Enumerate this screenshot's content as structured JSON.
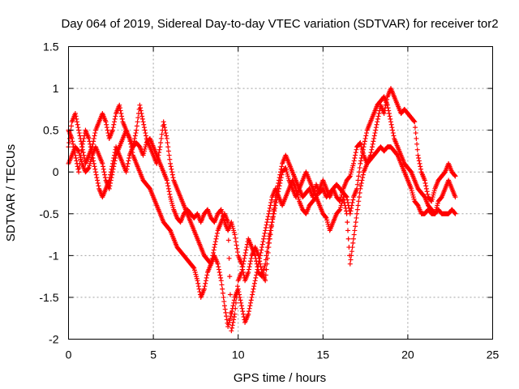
{
  "chart_data": {
    "type": "scatter",
    "title": "Day 064 of 2019, Sidereal Day-to-day VTEC variation (SDTVAR) for receiver tor2",
    "xlabel": "GPS time / hours",
    "ylabel": "SDTVAR / TECUs",
    "xlim": [
      0,
      25
    ],
    "ylim": [
      -2,
      1.5
    ],
    "xticks": [
      "0",
      "5",
      "10",
      "15",
      "20",
      "25"
    ],
    "yticks": [
      "1.5",
      "1",
      "0.5",
      "0",
      "-0.5",
      "-1",
      "-1.5",
      "-2"
    ],
    "grid": true,
    "marker": "+",
    "color": "#ff0000",
    "series": [
      {
        "x": [
          0.0,
          0.2,
          0.4,
          0.6,
          0.8,
          1.0,
          1.2,
          1.4,
          1.6,
          1.8,
          2.0,
          2.2,
          2.4,
          2.6,
          2.8,
          3.0,
          3.2,
          3.4,
          3.6,
          3.8,
          4.0,
          4.2,
          4.4,
          4.6,
          4.8,
          5.0,
          5.2,
          5.4,
          5.6,
          5.8,
          6.0,
          6.2,
          6.4,
          6.6,
          6.8,
          7.0,
          7.2,
          7.4,
          7.6,
          7.8,
          8.0,
          8.2,
          8.4,
          8.6,
          8.8,
          9.0,
          9.2,
          9.4,
          9.6,
          9.8,
          10.0,
          10.2,
          10.4,
          10.6,
          10.8,
          11.0,
          11.2,
          11.4,
          11.6,
          11.8,
          12.0,
          12.2,
          12.4,
          12.6,
          12.8,
          13.0,
          13.2,
          13.4,
          13.6,
          13.8,
          14.0,
          14.2,
          14.4,
          14.6,
          14.8,
          15.0,
          15.2,
          15.4,
          15.6,
          15.8,
          16.0,
          16.2,
          16.4,
          16.6,
          16.8,
          17.0,
          17.2,
          17.4,
          17.6,
          17.8,
          18.0,
          18.2,
          18.4,
          18.6,
          18.8,
          19.0,
          19.2,
          19.4,
          19.6,
          19.8,
          20.0,
          20.2,
          20.4,
          20.6,
          20.8,
          21.0,
          21.2,
          21.4,
          21.6,
          21.8,
          22.0,
          22.2,
          22.4,
          22.6,
          22.8
        ],
        "y": [
          0.3,
          0.6,
          0.7,
          0.5,
          0.3,
          0.1,
          0.2,
          0.3,
          0.5,
          0.6,
          0.7,
          0.6,
          0.4,
          0.5,
          0.7,
          0.8,
          0.6,
          0.5,
          0.4,
          0.3,
          0.35,
          0.3,
          0.2,
          0.35,
          0.4,
          0.3,
          0.2,
          0.1,
          0.0,
          -0.1,
          -0.3,
          -0.45,
          -0.55,
          -0.6,
          -0.5,
          -0.45,
          -0.5,
          -0.55,
          -0.5,
          -0.6,
          -0.5,
          -0.45,
          -0.55,
          -0.6,
          -0.5,
          -0.45,
          -0.6,
          -0.7,
          -0.6,
          -0.75,
          -1.0,
          -1.1,
          -1.3,
          -1.2,
          -1.0,
          -0.9,
          -1.0,
          -1.2,
          -1.3,
          -0.9,
          -0.6,
          -0.3,
          -0.1,
          0.1,
          0.2,
          0.1,
          0.0,
          -0.1,
          -0.2,
          -0.3,
          -0.25,
          -0.2,
          -0.3,
          -0.15,
          -0.25,
          -0.2,
          -0.3,
          -0.25,
          -0.2,
          -0.3,
          -0.35,
          -0.2,
          -0.1,
          -0.05,
          0.1,
          0.3,
          0.35,
          0.2,
          0.1,
          0.2,
          0.4,
          0.6,
          0.8,
          0.7,
          0.9,
          1.0,
          0.9,
          0.8,
          0.7,
          0.75,
          0.7,
          0.65,
          0.6,
          0.2,
          0.0,
          -0.1,
          -0.3,
          -0.35,
          -0.2,
          -0.1,
          -0.05,
          0.0,
          0.1,
          0.0,
          -0.05
        ]
      },
      {
        "x": [
          0.0,
          0.2,
          0.4,
          0.6,
          0.8,
          1.0,
          1.2,
          1.4,
          1.6,
          1.8,
          2.0,
          2.2,
          2.4,
          2.6,
          2.8,
          3.0,
          3.2,
          3.4,
          3.6,
          3.8,
          4.0,
          4.2,
          4.4,
          4.6,
          4.8,
          5.0,
          5.2,
          5.4,
          5.6,
          5.8,
          6.0,
          6.2,
          6.4,
          6.6,
          6.8,
          7.0,
          7.2,
          7.4,
          7.6,
          7.8,
          8.0,
          8.2,
          8.4,
          8.6,
          8.8,
          9.0,
          9.2,
          9.4,
          9.6,
          9.8,
          10.0,
          10.2,
          10.4,
          10.6,
          10.8,
          11.0,
          11.2,
          11.4,
          11.6,
          11.8,
          12.0,
          12.2,
          12.4,
          12.6,
          12.8,
          13.0,
          13.2,
          13.4,
          13.6,
          13.8,
          14.0,
          14.2,
          14.4,
          14.6,
          14.8,
          15.0,
          15.2,
          15.4,
          15.6,
          15.8,
          16.0,
          16.2,
          16.4,
          16.6,
          16.8,
          17.0,
          17.2,
          17.4,
          17.6,
          17.8,
          18.0,
          18.2,
          18.4,
          18.6,
          18.8,
          19.0,
          19.2,
          19.4,
          19.6,
          19.8,
          20.0,
          20.2,
          20.4,
          20.6,
          20.8,
          21.0,
          21.2,
          21.4,
          21.6,
          21.8,
          22.0,
          22.2,
          22.4,
          22.6,
          22.8
        ],
        "y": [
          0.1,
          0.2,
          0.3,
          0.25,
          0.1,
          0.0,
          0.05,
          0.2,
          0.3,
          0.2,
          0.1,
          -0.1,
          -0.2,
          0.0,
          0.2,
          0.3,
          0.4,
          0.5,
          0.4,
          0.2,
          0.1,
          0.0,
          -0.1,
          -0.15,
          -0.2,
          -0.3,
          -0.4,
          -0.5,
          -0.6,
          -0.65,
          -0.7,
          -0.8,
          -0.9,
          -0.95,
          -1.0,
          -1.05,
          -1.1,
          -1.15,
          -1.3,
          -1.5,
          -1.4,
          -1.2,
          -1.1,
          -1.0,
          -1.1,
          -1.3,
          -1.6,
          -1.85,
          -1.7,
          -1.5,
          -1.4,
          -1.6,
          -1.8,
          -1.7,
          -1.5,
          -1.3,
          -1.1,
          -0.9,
          -0.7,
          -0.5,
          -0.3,
          -0.2,
          -0.3,
          -0.4,
          -0.3,
          -0.2,
          -0.1,
          -0.2,
          -0.35,
          -0.45,
          -0.5,
          -0.4,
          -0.35,
          -0.3,
          -0.4,
          -0.5,
          -0.55,
          -0.7,
          -0.6,
          -0.5,
          -0.45,
          -0.3,
          -0.5,
          -1.1,
          -0.8,
          -0.5,
          -0.2,
          0.0,
          0.1,
          0.15,
          0.2,
          0.25,
          0.3,
          0.25,
          0.3,
          0.3,
          0.25,
          0.2,
          0.1,
          0.0,
          -0.1,
          -0.2,
          -0.35,
          -0.4,
          -0.5,
          -0.5,
          -0.45,
          -0.5,
          -0.5,
          -0.45,
          -0.5,
          -0.5,
          -0.5,
          -0.45,
          -0.5
        ]
      },
      {
        "x": [
          0.0,
          0.2,
          0.4,
          0.6,
          0.8,
          1.0,
          1.2,
          1.4,
          1.6,
          1.8,
          2.0,
          2.2,
          2.4,
          2.6,
          2.8,
          3.0,
          3.2,
          3.4,
          3.6,
          3.8,
          4.0,
          4.2,
          4.4,
          4.6,
          4.8,
          5.0,
          5.2,
          5.4,
          5.6,
          5.8,
          6.0,
          6.2,
          6.4,
          6.6,
          6.8,
          7.0,
          7.2,
          7.4,
          7.6,
          7.8,
          8.0,
          8.2,
          8.4,
          8.6,
          8.8,
          9.0,
          9.2,
          9.4,
          9.6,
          9.8,
          10.0,
          10.2,
          10.4,
          10.6,
          10.8,
          11.0,
          11.2,
          11.4,
          11.6,
          11.8,
          12.0,
          12.2,
          12.4,
          12.6,
          12.8,
          13.0,
          13.2,
          13.4,
          13.6,
          13.8,
          14.0,
          14.2,
          14.4,
          14.6,
          14.8,
          15.0,
          15.2,
          15.4,
          15.6,
          15.8,
          16.0,
          16.2,
          16.4,
          16.6,
          16.8,
          17.0,
          17.2,
          17.4,
          17.6,
          17.8,
          18.0,
          18.2,
          18.4,
          18.6,
          18.8,
          19.0,
          19.2,
          19.4,
          19.6,
          19.8,
          20.0,
          20.2,
          20.4,
          20.6,
          20.8,
          21.0,
          21.2,
          21.4,
          21.6,
          21.8,
          22.0,
          22.2,
          22.4,
          22.6,
          22.8
        ],
        "y": [
          0.5,
          0.4,
          0.2,
          0.0,
          0.3,
          0.5,
          0.4,
          0.2,
          0.0,
          -0.2,
          -0.3,
          -0.2,
          -0.1,
          0.1,
          0.3,
          0.2,
          0.1,
          0.0,
          0.2,
          0.3,
          0.5,
          0.8,
          0.6,
          0.4,
          0.3,
          0.2,
          0.1,
          0.3,
          0.6,
          0.4,
          0.1,
          -0.1,
          -0.2,
          -0.3,
          -0.4,
          -0.5,
          -0.6,
          -0.7,
          -0.8,
          -0.9,
          -1.0,
          -1.05,
          -1.1,
          -0.9,
          -0.7,
          -0.6,
          -0.5,
          -0.6,
          -1.9,
          -1.7,
          -1.3,
          -1.2,
          -1.0,
          -0.8,
          -0.9,
          -1.0,
          -1.2,
          -1.25,
          -1.1,
          -0.8,
          -0.6,
          -0.4,
          -0.2,
          0.0,
          0.05,
          -0.1,
          -0.2,
          -0.3,
          -0.2,
          -0.1,
          0.0,
          -0.1,
          -0.2,
          -0.3,
          -0.2,
          -0.1,
          -0.2,
          -0.3,
          -0.2,
          -0.15,
          -0.2,
          -0.25,
          -0.3,
          -0.5,
          -0.3,
          -0.2,
          0.1,
          0.3,
          0.5,
          0.6,
          0.7,
          0.8,
          0.85,
          0.9,
          0.8,
          0.6,
          0.4,
          0.3,
          0.2,
          0.1,
          0.05,
          0.0,
          -0.1,
          -0.2,
          -0.25,
          -0.3,
          -0.4,
          -0.45,
          -0.5,
          -0.35,
          -0.3,
          -0.2,
          -0.1,
          -0.2,
          -0.3
        ]
      }
    ]
  }
}
